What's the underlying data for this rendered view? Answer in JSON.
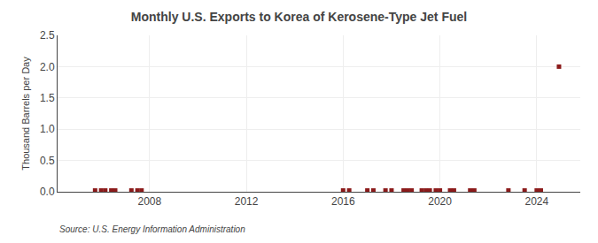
{
  "chart_data": {
    "type": "scatter",
    "title": "Monthly U.S. Exports to Korea of Kerosene-Type Jet Fuel",
    "ylabel": "Thousand Barrels per Day",
    "annotations": [
      "Source: U.S. Energy Information Administration"
    ],
    "marker": "square",
    "color": "#8b1a1a",
    "x": [
      2005.75,
      2006.0,
      2006.17,
      2006.42,
      2006.58,
      2007.25,
      2007.5,
      2007.67,
      2016.0,
      2016.25,
      2017.0,
      2017.25,
      2017.75,
      2018.0,
      2018.5,
      2018.67,
      2018.83,
      2019.25,
      2019.42,
      2019.58,
      2019.83,
      2020.0,
      2020.42,
      2020.58,
      2021.25,
      2021.42,
      2022.83,
      2023.5,
      2024.0,
      2024.17,
      2024.92
    ],
    "values": [
      0.02,
      0.02,
      0.02,
      0.02,
      0.02,
      0.02,
      0.02,
      0.02,
      0.02,
      0.02,
      0.02,
      0.02,
      0.02,
      0.02,
      0.02,
      0.02,
      0.02,
      0.02,
      0.02,
      0.02,
      0.02,
      0.02,
      0.02,
      0.02,
      0.02,
      0.02,
      0.02,
      0.02,
      0.02,
      0.02,
      2.0
    ],
    "xlim": [
      2004.2,
      2025.8
    ],
    "xticks": [
      2008,
      2012,
      2016,
      2020,
      2024
    ],
    "ylim": [
      0.0,
      2.5
    ],
    "yticks": [
      {
        "value": 0.0,
        "label": "0.0"
      },
      0.5,
      {
        "value": 1.0,
        "label": "1.0"
      },
      1.5,
      {
        "value": 2.0,
        "label": "2.0"
      },
      2.5
    ],
    "grid": true
  }
}
